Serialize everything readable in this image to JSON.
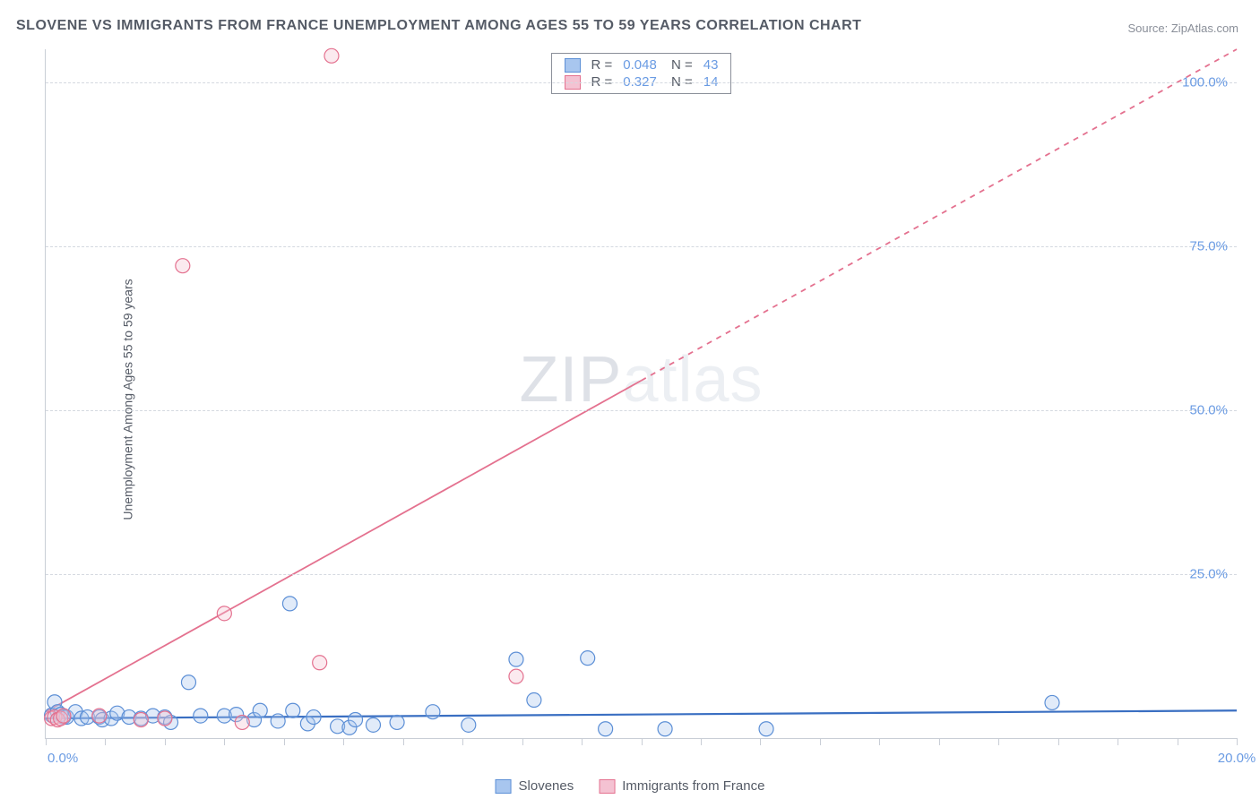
{
  "title": "SLOVENE VS IMMIGRANTS FROM FRANCE UNEMPLOYMENT AMONG AGES 55 TO 59 YEARS CORRELATION CHART",
  "source": "Source: ZipAtlas.com",
  "ylabel": "Unemployment Among Ages 55 to 59 years",
  "watermark": {
    "bold": "ZIP",
    "light": "atlas"
  },
  "chart": {
    "type": "scatter",
    "background_color": "#ffffff",
    "grid_color": "#d4d9e0",
    "axis_color": "#c9ced6",
    "xlim": [
      0,
      20
    ],
    "ylim": [
      0,
      105
    ],
    "xticks_minor": [
      0,
      1,
      2,
      3,
      4,
      5,
      6,
      7,
      8,
      9,
      10,
      11,
      12,
      13,
      14,
      15,
      16,
      17,
      18,
      19,
      20
    ],
    "xticks_labeled": [
      {
        "x": 0,
        "label": "0.0%"
      },
      {
        "x": 20,
        "label": "20.0%"
      }
    ],
    "yticks": [
      {
        "y": 25,
        "label": "25.0%"
      },
      {
        "y": 50,
        "label": "50.0%"
      },
      {
        "y": 75,
        "label": "75.0%"
      },
      {
        "y": 100,
        "label": "100.0%"
      }
    ],
    "marker_radius": 8,
    "marker_fill_opacity": 0.35,
    "marker_stroke_width": 1.2,
    "series": [
      {
        "key": "slovenes",
        "name": "Slovenes",
        "color_fill": "#a8c6ef",
        "color_stroke": "#5c8fd6",
        "R": "0.048",
        "N": "43",
        "trend": {
          "x1": 0,
          "y1": 3.0,
          "x2": 20,
          "y2": 4.2,
          "dashed": false,
          "color": "#3a6fc2",
          "width": 2.2
        },
        "points": [
          {
            "x": 0.1,
            "y": 3.5
          },
          {
            "x": 0.15,
            "y": 5.5
          },
          {
            "x": 0.2,
            "y": 4
          },
          {
            "x": 0.25,
            "y": 3.6
          },
          {
            "x": 0.3,
            "y": 3.2
          },
          {
            "x": 0.35,
            "y": 3.2
          },
          {
            "x": 0.5,
            "y": 4
          },
          {
            "x": 0.6,
            "y": 3
          },
          {
            "x": 0.7,
            "y": 3.2
          },
          {
            "x": 0.9,
            "y": 3.2
          },
          {
            "x": 0.95,
            "y": 2.8
          },
          {
            "x": 1.1,
            "y": 3
          },
          {
            "x": 1.2,
            "y": 3.8
          },
          {
            "x": 1.4,
            "y": 3.2
          },
          {
            "x": 1.6,
            "y": 3
          },
          {
            "x": 1.8,
            "y": 3.4
          },
          {
            "x": 2.0,
            "y": 3.2
          },
          {
            "x": 2.1,
            "y": 2.4
          },
          {
            "x": 2.4,
            "y": 8.5
          },
          {
            "x": 2.6,
            "y": 3.4
          },
          {
            "x": 3.0,
            "y": 3.4
          },
          {
            "x": 3.2,
            "y": 3.6
          },
          {
            "x": 3.5,
            "y": 2.8
          },
          {
            "x": 3.6,
            "y": 4.2
          },
          {
            "x": 3.9,
            "y": 2.6
          },
          {
            "x": 4.1,
            "y": 20.5
          },
          {
            "x": 4.15,
            "y": 4.2
          },
          {
            "x": 4.4,
            "y": 2.2
          },
          {
            "x": 4.5,
            "y": 3.2
          },
          {
            "x": 4.9,
            "y": 1.8
          },
          {
            "x": 5.1,
            "y": 1.6
          },
          {
            "x": 5.2,
            "y": 2.8
          },
          {
            "x": 5.5,
            "y": 2.0
          },
          {
            "x": 5.9,
            "y": 2.4
          },
          {
            "x": 6.5,
            "y": 4.0
          },
          {
            "x": 7.1,
            "y": 2.0
          },
          {
            "x": 7.9,
            "y": 12.0
          },
          {
            "x": 8.2,
            "y": 5.8
          },
          {
            "x": 9.1,
            "y": 12.2
          },
          {
            "x": 9.4,
            "y": 1.4
          },
          {
            "x": 10.4,
            "y": 1.4
          },
          {
            "x": 12.1,
            "y": 1.4
          },
          {
            "x": 16.9,
            "y": 5.4
          }
        ]
      },
      {
        "key": "france",
        "name": "Immigrants from France",
        "color_fill": "#f4c2d2",
        "color_stroke": "#e4718f",
        "R": "0.327",
        "N": "14",
        "trend": {
          "x1": 0,
          "y1": 4.0,
          "x2": 20,
          "y2": 105,
          "dashed_after_x": 10,
          "color": "#e4718f",
          "width": 1.8
        },
        "points": [
          {
            "x": 0.1,
            "y": 3
          },
          {
            "x": 0.15,
            "y": 3.2
          },
          {
            "x": 0.2,
            "y": 2.8
          },
          {
            "x": 0.25,
            "y": 3
          },
          {
            "x": 0.3,
            "y": 3.4
          },
          {
            "x": 0.9,
            "y": 3.4
          },
          {
            "x": 1.6,
            "y": 2.8
          },
          {
            "x": 2.0,
            "y": 3
          },
          {
            "x": 2.3,
            "y": 72
          },
          {
            "x": 3.0,
            "y": 19
          },
          {
            "x": 3.3,
            "y": 2.4
          },
          {
            "x": 4.6,
            "y": 11.5
          },
          {
            "x": 4.8,
            "y": 104
          },
          {
            "x": 7.9,
            "y": 9.4
          }
        ]
      }
    ]
  },
  "legend_bottom": [
    {
      "series": "slovenes",
      "label": "Slovenes"
    },
    {
      "series": "france",
      "label": "Immigrants from France"
    }
  ]
}
